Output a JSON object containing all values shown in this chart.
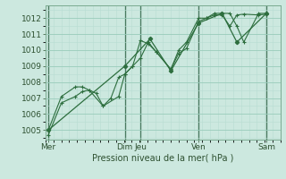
{
  "title": "",
  "xlabel": "Pression niveau de la mer( hPa )",
  "bg_color": "#cce8df",
  "grid_major_color": "#99ccbb",
  "grid_minor_color": "#b8ddd2",
  "line_color": "#2d6e3e",
  "ylim": [
    1004.4,
    1012.8
  ],
  "yticks": [
    1005,
    1006,
    1007,
    1008,
    1009,
    1010,
    1011,
    1012
  ],
  "xlim": [
    0,
    13.5
  ],
  "day_labels": [
    "Mer",
    "Dim",
    "Jeu",
    "Ven",
    "Sam"
  ],
  "day_positions": [
    0.15,
    4.55,
    5.45,
    8.8,
    12.7
  ],
  "vline_positions": [
    0.15,
    4.55,
    5.45,
    8.8,
    12.7
  ],
  "lines": [
    {
      "x": [
        0.15,
        0.9,
        1.7,
        2.1,
        2.5,
        2.9,
        3.3,
        3.75,
        4.2,
        4.55,
        5.0,
        5.45,
        5.9,
        6.35,
        7.2,
        7.65,
        8.1,
        8.8,
        9.25,
        9.7,
        10.15,
        10.6,
        11.0,
        11.4,
        12.25,
        12.7
      ],
      "y": [
        1004.7,
        1006.7,
        1007.1,
        1007.4,
        1007.5,
        1007.3,
        1006.5,
        1007.0,
        1008.3,
        1008.5,
        1009.0,
        1010.6,
        1010.4,
        1009.9,
        1008.8,
        1009.8,
        1010.1,
        1011.8,
        1012.0,
        1012.2,
        1012.2,
        1011.5,
        1012.2,
        1012.25,
        1012.2,
        1012.25
      ],
      "marker": "+"
    },
    {
      "x": [
        0.15,
        0.9,
        1.7,
        2.1,
        2.5,
        3.3,
        4.2,
        4.55,
        5.0,
        5.45,
        5.9,
        6.35,
        7.2,
        7.65,
        8.1,
        8.8,
        9.25,
        9.7,
        10.15,
        10.6,
        11.0,
        11.4,
        12.25,
        12.7
      ],
      "y": [
        1005.0,
        1007.1,
        1007.7,
        1007.7,
        1007.5,
        1006.5,
        1007.1,
        1008.5,
        1009.0,
        1009.5,
        1010.5,
        1009.9,
        1008.8,
        1010.0,
        1010.5,
        1012.0,
        1012.0,
        1012.3,
        1012.3,
        1012.3,
        1011.5,
        1010.5,
        1012.3,
        1012.3
      ],
      "marker": "+"
    },
    {
      "x": [
        0.15,
        4.55,
        6.0,
        7.2,
        8.8,
        10.15,
        11.0,
        12.7
      ],
      "y": [
        1005.0,
        1009.0,
        1010.7,
        1008.7,
        1011.7,
        1012.3,
        1010.5,
        1012.3
      ],
      "marker": "D"
    }
  ]
}
